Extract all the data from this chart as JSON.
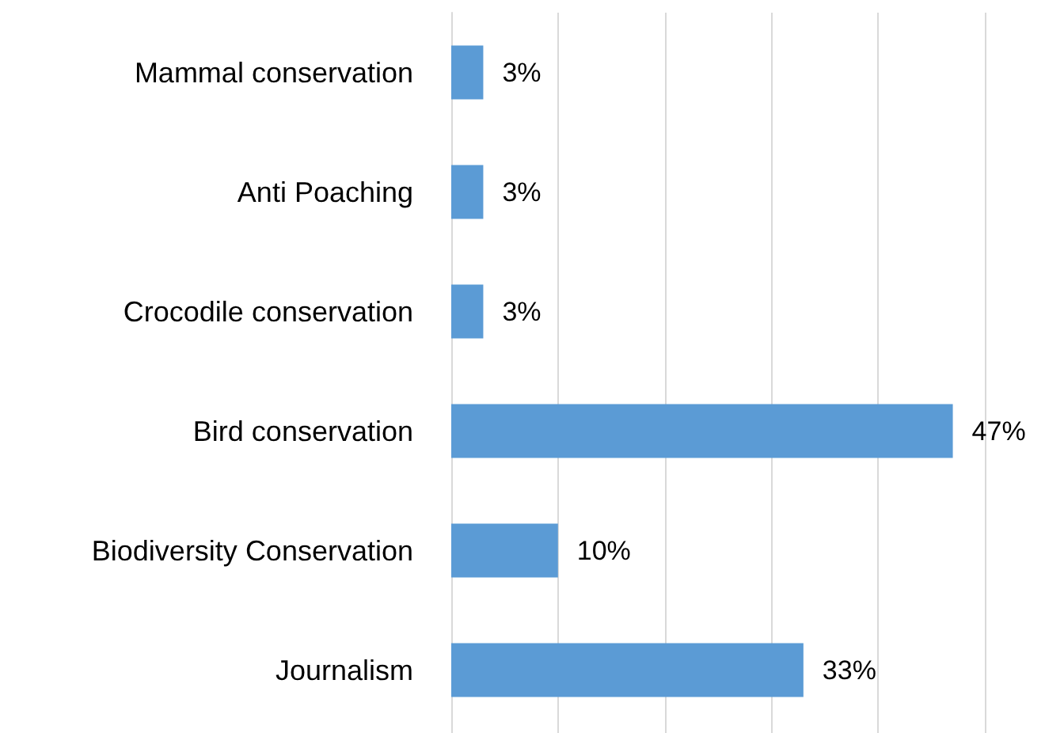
{
  "chart_data": {
    "type": "bar",
    "orientation": "horizontal",
    "categories": [
      "Mammal conservation",
      "Anti Poaching",
      "Crocodile conservation",
      "Bird conservation",
      "Biodiversity Conservation",
      "Journalism"
    ],
    "values": [
      3,
      3,
      3,
      47,
      10,
      33
    ],
    "value_labels": [
      "3%",
      "3%",
      "3%",
      "47%",
      "10%",
      "33%"
    ],
    "color": "#5b9bd5",
    "xlim": [
      0,
      50
    ],
    "xticks": [
      {
        "value": 0,
        "label": null
      },
      {
        "value": 10,
        "label": null
      },
      {
        "value": 20,
        "label": null
      },
      {
        "value": 30,
        "label": null
      },
      {
        "value": 40,
        "label": null
      },
      {
        "value": 50,
        "label": null
      }
    ],
    "tick_labels": "y",
    "grid": "x"
  }
}
